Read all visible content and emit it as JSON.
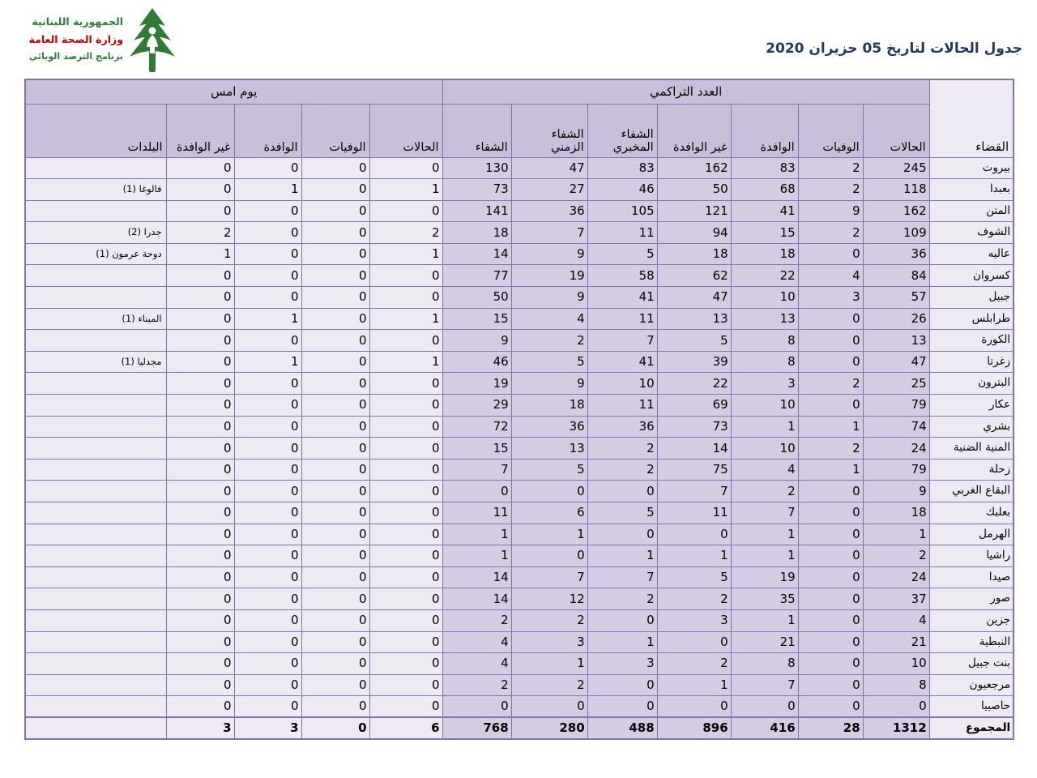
{
  "colors": {
    "border": "#8372ac",
    "header_bg": "#c8bfda",
    "cumulative_bg": "#d4cce3",
    "light_bg": "#edeaf3",
    "title_color": "#203864",
    "logo_green": "#2f7b36",
    "logo_red": "#c00000"
  },
  "header": {
    "title": "جدول الحالات لتاريخ 05 حزيران 2020",
    "logo": {
      "line1": "الجمهورية اللبنانية",
      "line2": "وزارة الصحة العامة",
      "line3": "برنامج الترصد الوبائي",
      "icon": "cedar-tree-icon"
    }
  },
  "table": {
    "district_header": "القضاء",
    "cumulative_group": "العدد التراكمي",
    "yesterday_group": "يوم امس",
    "towns_header": "البلدات",
    "cumulative_columns": [
      "الحالات",
      "الوفيات",
      "الوافدة",
      "غير الوافدة",
      "الشفاء المخبري",
      "الشفاء الزمني",
      "الشفاء"
    ],
    "yesterday_columns": [
      "الحالات",
      "الوفيات",
      "الوافدة",
      "غير الوافدة"
    ],
    "rows": [
      {
        "district": "بيروت",
        "cumulative": [
          245,
          2,
          83,
          162,
          83,
          47,
          130
        ],
        "yesterday": [
          0,
          0,
          0,
          0
        ],
        "towns": ""
      },
      {
        "district": "بعبدا",
        "cumulative": [
          118,
          2,
          68,
          50,
          46,
          27,
          73
        ],
        "yesterday": [
          1,
          0,
          1,
          0
        ],
        "towns": "فالوغا (1)"
      },
      {
        "district": "المتن",
        "cumulative": [
          162,
          9,
          41,
          121,
          105,
          36,
          141
        ],
        "yesterday": [
          0,
          0,
          0,
          0
        ],
        "towns": ""
      },
      {
        "district": "الشوف",
        "cumulative": [
          109,
          2,
          15,
          94,
          11,
          7,
          18
        ],
        "yesterday": [
          2,
          0,
          0,
          2
        ],
        "towns": "جدرا (2)"
      },
      {
        "district": "عاليه",
        "cumulative": [
          36,
          0,
          18,
          18,
          5,
          9,
          14
        ],
        "yesterday": [
          1,
          0,
          0,
          1
        ],
        "towns": "دوحة عرمون (1)"
      },
      {
        "district": "كسروان",
        "cumulative": [
          84,
          4,
          22,
          62,
          58,
          19,
          77
        ],
        "yesterday": [
          0,
          0,
          0,
          0
        ],
        "towns": ""
      },
      {
        "district": "جبيل",
        "cumulative": [
          57,
          3,
          10,
          47,
          41,
          9,
          50
        ],
        "yesterday": [
          0,
          0,
          0,
          0
        ],
        "towns": ""
      },
      {
        "district": "طرابلس",
        "cumulative": [
          26,
          0,
          13,
          13,
          11,
          4,
          15
        ],
        "yesterday": [
          1,
          0,
          1,
          0
        ],
        "towns": "الميناء (1)"
      },
      {
        "district": "الكورة",
        "cumulative": [
          13,
          0,
          8,
          5,
          7,
          2,
          9
        ],
        "yesterday": [
          0,
          0,
          0,
          0
        ],
        "towns": ""
      },
      {
        "district": "زغرتا",
        "cumulative": [
          47,
          0,
          8,
          39,
          41,
          5,
          46
        ],
        "yesterday": [
          1,
          0,
          1,
          0
        ],
        "towns": "مجدليا (1)"
      },
      {
        "district": "البترون",
        "cumulative": [
          25,
          2,
          3,
          22,
          10,
          9,
          19
        ],
        "yesterday": [
          0,
          0,
          0,
          0
        ],
        "towns": ""
      },
      {
        "district": "عكار",
        "cumulative": [
          79,
          0,
          10,
          69,
          11,
          18,
          29
        ],
        "yesterday": [
          0,
          0,
          0,
          0
        ],
        "towns": ""
      },
      {
        "district": "بشري",
        "cumulative": [
          74,
          1,
          1,
          73,
          36,
          36,
          72
        ],
        "yesterday": [
          0,
          0,
          0,
          0
        ],
        "towns": ""
      },
      {
        "district": "المنية الضنية",
        "cumulative": [
          24,
          2,
          10,
          14,
          2,
          13,
          15
        ],
        "yesterday": [
          0,
          0,
          0,
          0
        ],
        "towns": ""
      },
      {
        "district": "زحلة",
        "cumulative": [
          79,
          1,
          4,
          75,
          2,
          5,
          7
        ],
        "yesterday": [
          0,
          0,
          0,
          0
        ],
        "towns": ""
      },
      {
        "district": "البقاع الغربي",
        "cumulative": [
          9,
          0,
          2,
          7,
          0,
          0,
          0
        ],
        "yesterday": [
          0,
          0,
          0,
          0
        ],
        "towns": ""
      },
      {
        "district": "بعلبك",
        "cumulative": [
          18,
          0,
          7,
          11,
          5,
          6,
          11
        ],
        "yesterday": [
          0,
          0,
          0,
          0
        ],
        "towns": ""
      },
      {
        "district": "الهرمل",
        "cumulative": [
          1,
          0,
          1,
          0,
          0,
          1,
          1
        ],
        "yesterday": [
          0,
          0,
          0,
          0
        ],
        "towns": ""
      },
      {
        "district": "راشيا",
        "cumulative": [
          2,
          0,
          1,
          1,
          1,
          0,
          1
        ],
        "yesterday": [
          0,
          0,
          0,
          0
        ],
        "towns": ""
      },
      {
        "district": "صيدا",
        "cumulative": [
          24,
          0,
          19,
          5,
          7,
          7,
          14
        ],
        "yesterday": [
          0,
          0,
          0,
          0
        ],
        "towns": ""
      },
      {
        "district": "صور",
        "cumulative": [
          37,
          0,
          35,
          2,
          2,
          12,
          14
        ],
        "yesterday": [
          0,
          0,
          0,
          0
        ],
        "towns": ""
      },
      {
        "district": "جزين",
        "cumulative": [
          4,
          0,
          1,
          3,
          0,
          2,
          2
        ],
        "yesterday": [
          0,
          0,
          0,
          0
        ],
        "towns": ""
      },
      {
        "district": "النبطية",
        "cumulative": [
          21,
          0,
          21,
          0,
          1,
          3,
          4
        ],
        "yesterday": [
          0,
          0,
          0,
          0
        ],
        "towns": ""
      },
      {
        "district": "بنت جبيل",
        "cumulative": [
          10,
          0,
          8,
          2,
          3,
          1,
          4
        ],
        "yesterday": [
          0,
          0,
          0,
          0
        ],
        "towns": ""
      },
      {
        "district": "مرجعيون",
        "cumulative": [
          8,
          0,
          7,
          1,
          0,
          2,
          2
        ],
        "yesterday": [
          0,
          0,
          0,
          0
        ],
        "towns": ""
      },
      {
        "district": "حاصبيا",
        "cumulative": [
          0,
          0,
          0,
          0,
          0,
          0,
          0
        ],
        "yesterday": [
          0,
          0,
          0,
          0
        ],
        "towns": ""
      }
    ],
    "total": {
      "district": "المجموع",
      "cumulative": [
        1312,
        28,
        416,
        896,
        488,
        280,
        768
      ],
      "yesterday": [
        6,
        0,
        3,
        3
      ],
      "towns": ""
    }
  }
}
